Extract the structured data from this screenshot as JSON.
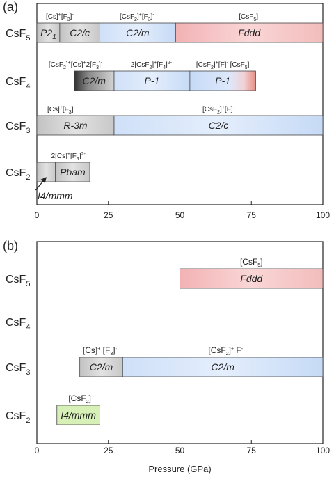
{
  "chart_data": [
    {
      "type": "bar",
      "panel_label": "(a)",
      "xlim": [
        0,
        100
      ],
      "xticks": [
        "0",
        "25",
        "50",
        "75",
        "100"
      ],
      "xlabel": "",
      "rows": [
        {
          "compound": "CsF",
          "sub": "5",
          "segments": [
            {
              "phase": "P2",
              "phase_sub": "1",
              "start": 0,
              "end": 8,
              "color": "#cccccc"
            },
            {
              "phase": "C2/c",
              "start": 8,
              "end": 22,
              "color": "#cccccc"
            },
            {
              "phase": "C2/m",
              "start": 22,
              "end": 48.5,
              "color": "#c6daf6"
            },
            {
              "phase": "Fddd",
              "start": 48.5,
              "end": 100,
              "color": "#f6c1c1"
            }
          ]
        },
        {
          "compound": "CsF",
          "sub": "4",
          "segments": [
            {
              "phase": "C2/m",
              "start": 13,
              "end": 27,
              "color": "#b9b9b9",
              "gradient": "dark"
            },
            {
              "phase": "P-1",
              "start": 27,
              "end": 53.5,
              "color": "#c6daf6"
            },
            {
              "phase": "P-1",
              "start": 53.5,
              "end": 76.5,
              "color": "#c6daf6",
              "gradient": "red"
            }
          ]
        },
        {
          "compound": "CsF",
          "sub": "3",
          "segments": [
            {
              "phase": "R-3m",
              "start": 0,
              "end": 27,
              "color": "#cccccc"
            },
            {
              "phase": "C2/c",
              "start": 27,
              "end": 100,
              "color": "#c6daf6"
            }
          ]
        },
        {
          "compound": "CsF",
          "sub": "2",
          "segments": [
            {
              "phase": "",
              "start": 0,
              "end": 6.5,
              "color": "#cccccc"
            },
            {
              "phase": "Pbam",
              "start": 6.5,
              "end": 18.5,
              "color": "#cccccc"
            }
          ]
        }
      ],
      "annotations": [
        {
          "row": 0,
          "at": 8,
          "html": "[Cs]<sup>+</sup>[F<sub>3</sub>]<sup>-</sup>"
        },
        {
          "row": 0,
          "at": 35,
          "html": "[CsF<sub>2</sub>]<sup>+</sup>[F<sub>3</sub>]<sup>-</sup>"
        },
        {
          "row": 0,
          "at": 74,
          "html": "[CsF<sub>5</sub>]"
        },
        {
          "row": 1,
          "at": 13.5,
          "html": "[CsF<sub>2</sub>]<sup>+</sup>[Cs]<sup>+</sup>2[F<sub>3</sub>]<sup>-</sup>"
        },
        {
          "row": 1,
          "at": 40,
          "html": "2[CsF<sub>2</sub>]<sup>+</sup>[F<sub>4</sub>]<sup>2-</sup>"
        },
        {
          "row": 1,
          "at": 65,
          "html": "[CsF<sub>2</sub>]<sup>+</sup>[F]<sup>-</sup> [CsF<sub>5</sub>]"
        },
        {
          "row": 2,
          "at": 8.5,
          "html": "[Cs]<sup>+</sup>[F<sub>3</sub>]<sup>-</sup>"
        },
        {
          "row": 2,
          "at": 63.5,
          "html": "[CsF<sub>2</sub>]<sup>+</sup>[F]<sup>-</sup>"
        },
        {
          "row": 3,
          "at": 11,
          "html": "2[Cs]<sup>+</sup>[F<sub>4</sub>]<sup>2-</sup>"
        }
      ],
      "callouts": [
        {
          "row": 3,
          "phase": "I4/mmm",
          "points_to": 3
        }
      ]
    },
    {
      "type": "bar",
      "panel_label": "(b)",
      "xlim": [
        0,
        100
      ],
      "xticks": [
        "0",
        "25",
        "50",
        "75",
        "100"
      ],
      "xlabel": "Pressure (GPa)",
      "rows": [
        {
          "compound": "CsF",
          "sub": "5",
          "segments": [
            {
              "phase": "Fddd",
              "start": 50,
              "end": 100,
              "color": "#f6c1c1"
            }
          ]
        },
        {
          "compound": "CsF",
          "sub": "4",
          "segments": []
        },
        {
          "compound": "CsF",
          "sub": "3",
          "segments": [
            {
              "phase": "C2/m",
              "start": 15,
              "end": 30,
              "color": "#cccccc"
            },
            {
              "phase": "C2/m",
              "start": 30,
              "end": 100,
              "color": "#c6daf6"
            }
          ]
        },
        {
          "compound": "CsF",
          "sub": "2",
          "segments": [
            {
              "phase": "I4/mmm",
              "start": 7,
              "end": 22,
              "color": "#d6f0b8"
            }
          ]
        }
      ],
      "annotations": [
        {
          "row": 0,
          "at": 75,
          "html": "[CsF<sub>5</sub>]"
        },
        {
          "row": 2,
          "at": 22,
          "html": "[Cs]<sup>+</sup> [F<sub>3</sub>]<sup>-</sup>"
        },
        {
          "row": 2,
          "at": 66,
          "html": "[CsF<sub>2</sub>]<sup>+</sup> F<sup>-</sup>"
        },
        {
          "row": 3,
          "at": 15,
          "html": "[CsF<sub>2</sub>]"
        }
      ],
      "callouts": []
    }
  ]
}
